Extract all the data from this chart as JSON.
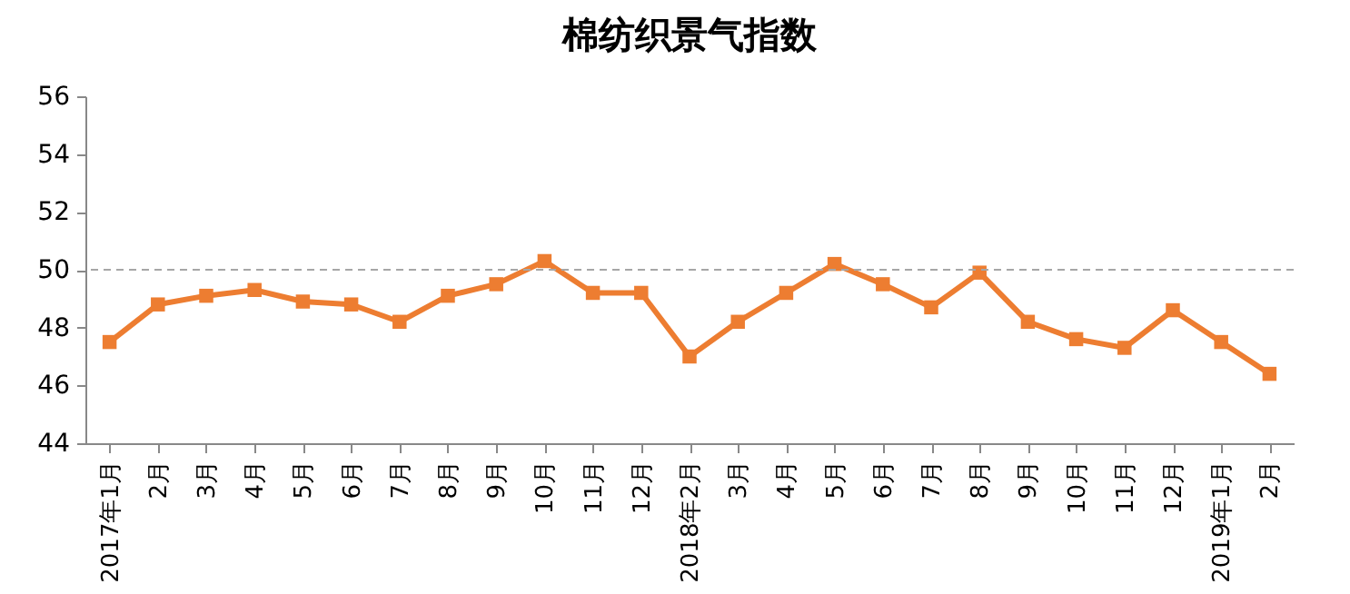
{
  "chart_data": {
    "type": "line",
    "title": "棉纺织景气指数",
    "categories": [
      "2017年1月",
      "2月",
      "3月",
      "4月",
      "5月",
      "6月",
      "7月",
      "8月",
      "9月",
      "10月",
      "11月",
      "12月",
      "2018年2月",
      "3月",
      "4月",
      "5月",
      "6月",
      "7月",
      "8月",
      "9月",
      "10月",
      "11月",
      "12月",
      "2019年1月",
      "2月"
    ],
    "series": [
      {
        "color": "#ed7d31",
        "values": [
          47.5,
          48.8,
          49.1,
          49.3,
          48.9,
          48.8,
          48.2,
          49.1,
          49.5,
          50.3,
          49.2,
          49.2,
          47.0,
          48.2,
          49.2,
          50.2,
          49.5,
          48.7,
          49.9,
          48.2,
          47.6,
          47.3,
          48.6,
          47.5,
          46.4
        ]
      }
    ],
    "ylim": [
      44,
      56
    ],
    "yticks": [
      44,
      46,
      48,
      50,
      52,
      54,
      56
    ],
    "ref_lines": [
      {
        "axis": "y",
        "value": 50,
        "color": "#a6a6a6",
        "line_style": "dashed"
      }
    ],
    "marker": "square",
    "grid": false
  }
}
